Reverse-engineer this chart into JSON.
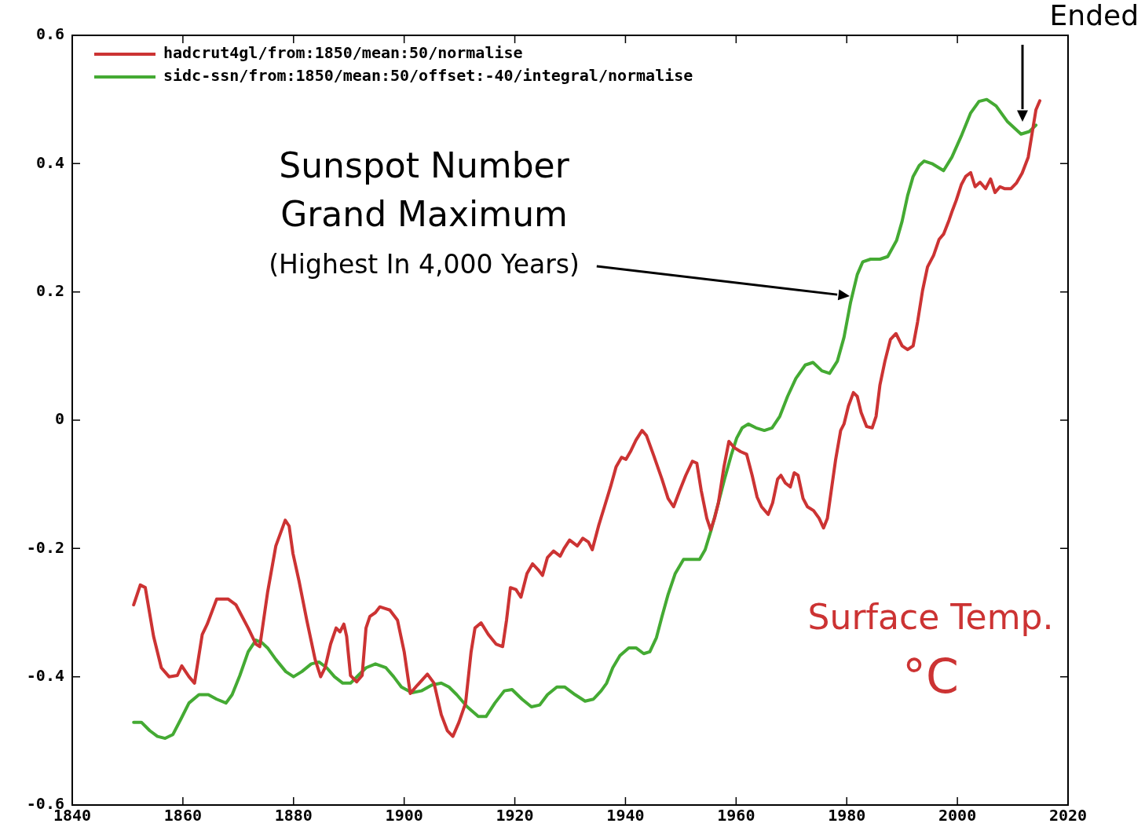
{
  "chart_data": {
    "type": "line",
    "xlim": [
      1840,
      2020
    ],
    "xticks": [
      1840,
      1860,
      1880,
      1900,
      1920,
      1940,
      1960,
      1980,
      2000,
      2020
    ],
    "ylim": [
      -0.6,
      0.6
    ],
    "yticks": [
      -0.6,
      -0.4,
      -0.2,
      0,
      0.2,
      0.4,
      0.6
    ],
    "legend": "top left",
    "grid": false,
    "marker": "none",
    "line_style": "solid",
    "series": [
      {
        "name": "hadcrut4gl/from:1850/mean:50/normalise",
        "color": "#cc3333",
        "x": [
          1851.1,
          1852.3,
          1853.2,
          1854.7,
          1856.1,
          1857.5,
          1859.0,
          1859.8,
          1861.1,
          1862.1,
          1863.5,
          1864.4,
          1866.1,
          1868.2,
          1869.6,
          1871.8,
          1873.2,
          1873.9,
          1875.3,
          1876.8,
          1878.5,
          1879.2,
          1879.9,
          1881.0,
          1882.4,
          1883.9,
          1884.9,
          1885.7,
          1886.7,
          1887.7,
          1888.4,
          1889.1,
          1889.6,
          1890.3,
          1891.4,
          1892.4,
          1893.1,
          1893.8,
          1894.8,
          1895.6,
          1896.7,
          1897.4,
          1898.8,
          1900.0,
          1901.1,
          1902.4,
          1904.2,
          1905.4,
          1906.7,
          1907.8,
          1908.8,
          1909.9,
          1911.1,
          1912.1,
          1912.8,
          1913.9,
          1915.2,
          1916.6,
          1917.8,
          1918.5,
          1919.2,
          1920.2,
          1921.1,
          1922.2,
          1923.2,
          1924.2,
          1925.0,
          1925.9,
          1927.0,
          1928.2,
          1928.9,
          1929.9,
          1931.3,
          1932.3,
          1933.3,
          1934.0,
          1935.2,
          1936.2,
          1937.3,
          1938.3,
          1939.3,
          1940.1,
          1940.9,
          1941.9,
          1943.0,
          1943.8,
          1945.1,
          1946.6,
          1947.7,
          1948.7,
          1949.8,
          1950.9,
          1952.1,
          1952.9,
          1953.7,
          1954.7,
          1955.4,
          1956.1,
          1956.8,
          1957.8,
          1958.7,
          1959.7,
          1960.8,
          1961.9,
          1962.9,
          1963.8,
          1964.6,
          1965.8,
          1966.6,
          1967.5,
          1968.1,
          1968.9,
          1969.8,
          1970.5,
          1971.2,
          1972.1,
          1972.9,
          1974.0,
          1975.0,
          1975.8,
          1976.5,
          1977.2,
          1978.0,
          1978.9,
          1979.5,
          1980.3,
          1981.2,
          1981.9,
          1982.6,
          1983.6,
          1984.6,
          1985.3,
          1986.0,
          1986.9,
          1987.9,
          1988.9,
          1990.0,
          1991.0,
          1992.0,
          1992.8,
          1993.7,
          1994.6,
          1995.7,
          1996.7,
          1997.5,
          1998.5,
          1999.1,
          1999.8,
          2000.7,
          2001.5,
          2002.4,
          2003.2,
          2004.1,
          2005.1,
          2006.0,
          2006.8,
          2007.7,
          2008.5,
          2009.7,
          2010.7,
          2011.7,
          2012.8,
          2013.5,
          2014.2,
          2014.9
        ],
        "values": [
          -0.288,
          -0.257,
          -0.261,
          -0.337,
          -0.386,
          -0.4,
          -0.398,
          -0.383,
          -0.4,
          -0.41,
          -0.334,
          -0.318,
          -0.279,
          -0.279,
          -0.288,
          -0.324,
          -0.349,
          -0.353,
          -0.269,
          -0.196,
          -0.156,
          -0.165,
          -0.208,
          -0.251,
          -0.312,
          -0.373,
          -0.4,
          -0.386,
          -0.349,
          -0.324,
          -0.33,
          -0.318,
          -0.337,
          -0.398,
          -0.408,
          -0.398,
          -0.324,
          -0.306,
          -0.3,
          -0.291,
          -0.294,
          -0.296,
          -0.312,
          -0.361,
          -0.426,
          -0.413,
          -0.396,
          -0.41,
          -0.459,
          -0.484,
          -0.493,
          -0.471,
          -0.441,
          -0.361,
          -0.324,
          -0.316,
          -0.334,
          -0.349,
          -0.353,
          -0.312,
          -0.261,
          -0.264,
          -0.276,
          -0.239,
          -0.224,
          -0.233,
          -0.242,
          -0.214,
          -0.204,
          -0.212,
          -0.2,
          -0.187,
          -0.196,
          -0.184,
          -0.19,
          -0.202,
          -0.163,
          -0.135,
          -0.104,
          -0.073,
          -0.058,
          -0.061,
          -0.049,
          -0.031,
          -0.016,
          -0.024,
          -0.055,
          -0.092,
          -0.122,
          -0.135,
          -0.11,
          -0.086,
          -0.064,
          -0.067,
          -0.11,
          -0.153,
          -0.171,
          -0.153,
          -0.129,
          -0.073,
          -0.033,
          -0.043,
          -0.049,
          -0.053,
          -0.086,
          -0.12,
          -0.135,
          -0.147,
          -0.129,
          -0.092,
          -0.086,
          -0.098,
          -0.104,
          -0.082,
          -0.086,
          -0.122,
          -0.135,
          -0.141,
          -0.153,
          -0.168,
          -0.153,
          -0.11,
          -0.061,
          -0.016,
          -0.006,
          0.022,
          0.043,
          0.037,
          0.012,
          -0.01,
          -0.012,
          0.006,
          0.055,
          0.092,
          0.126,
          0.135,
          0.116,
          0.11,
          0.116,
          0.153,
          0.202,
          0.239,
          0.257,
          0.282,
          0.29,
          0.312,
          0.327,
          0.343,
          0.367,
          0.38,
          0.386,
          0.364,
          0.371,
          0.361,
          0.376,
          0.355,
          0.364,
          0.361,
          0.361,
          0.37,
          0.385,
          0.41,
          0.447,
          0.484,
          0.498
        ]
      },
      {
        "name": "sidc-ssn/from:1850/mean:50/offset:-40/integral/normalise",
        "color": "#44aa33",
        "x": [
          1851.1,
          1852.5,
          1854.0,
          1855.4,
          1856.8,
          1858.2,
          1859.7,
          1861.1,
          1862.9,
          1864.6,
          1866.1,
          1867.8,
          1868.9,
          1870.3,
          1871.8,
          1873.2,
          1874.3,
          1875.3,
          1876.8,
          1878.6,
          1880.0,
          1881.5,
          1883.2,
          1884.6,
          1886.0,
          1887.4,
          1888.9,
          1890.3,
          1891.7,
          1893.1,
          1894.8,
          1896.7,
          1898.1,
          1899.5,
          1901.4,
          1903.1,
          1905.0,
          1906.7,
          1908.1,
          1909.5,
          1911.4,
          1913.4,
          1914.8,
          1916.4,
          1918.1,
          1919.5,
          1921.3,
          1923.0,
          1924.5,
          1925.9,
          1927.6,
          1929.0,
          1930.9,
          1932.7,
          1934.2,
          1935.6,
          1936.6,
          1937.7,
          1939.0,
          1940.6,
          1941.9,
          1943.3,
          1944.4,
          1945.6,
          1946.6,
          1947.7,
          1949.0,
          1950.5,
          1952.0,
          1953.4,
          1954.4,
          1955.5,
          1956.8,
          1957.9,
          1959.1,
          1960.1,
          1961.1,
          1962.2,
          1963.6,
          1965.1,
          1966.5,
          1967.9,
          1969.3,
          1970.8,
          1972.5,
          1973.9,
          1975.5,
          1976.9,
          1978.3,
          1979.5,
          1980.7,
          1981.9,
          1982.9,
          1984.3,
          1986.0,
          1987.4,
          1989.0,
          1990.0,
          1991.0,
          1992.0,
          1993.1,
          1994.0,
          1995.4,
          1997.5,
          1999.0,
          2000.8,
          2002.4,
          2003.9,
          2005.3,
          2007.0,
          2009.0,
          2011.5,
          2013.0,
          2014.2
        ],
        "values": [
          -0.471,
          -0.471,
          -0.484,
          -0.493,
          -0.496,
          -0.49,
          -0.465,
          -0.441,
          -0.428,
          -0.428,
          -0.435,
          -0.441,
          -0.428,
          -0.398,
          -0.361,
          -0.343,
          -0.347,
          -0.355,
          -0.373,
          -0.392,
          -0.4,
          -0.392,
          -0.38,
          -0.377,
          -0.386,
          -0.4,
          -0.41,
          -0.41,
          -0.398,
          -0.386,
          -0.38,
          -0.386,
          -0.4,
          -0.416,
          -0.425,
          -0.422,
          -0.413,
          -0.41,
          -0.416,
          -0.428,
          -0.447,
          -0.462,
          -0.462,
          -0.441,
          -0.422,
          -0.42,
          -0.435,
          -0.447,
          -0.444,
          -0.428,
          -0.416,
          -0.416,
          -0.428,
          -0.438,
          -0.435,
          -0.422,
          -0.41,
          -0.386,
          -0.367,
          -0.355,
          -0.355,
          -0.364,
          -0.361,
          -0.339,
          -0.306,
          -0.272,
          -0.239,
          -0.217,
          -0.217,
          -0.217,
          -0.202,
          -0.171,
          -0.129,
          -0.092,
          -0.055,
          -0.028,
          -0.012,
          -0.006,
          -0.012,
          -0.016,
          -0.012,
          0.006,
          0.037,
          0.065,
          0.086,
          0.09,
          0.077,
          0.073,
          0.092,
          0.129,
          0.184,
          0.227,
          0.247,
          0.251,
          0.251,
          0.255,
          0.28,
          0.31,
          0.35,
          0.38,
          0.397,
          0.404,
          0.4,
          0.389,
          0.41,
          0.445,
          0.479,
          0.497,
          0.5,
          0.49,
          0.466,
          0.446,
          0.45,
          0.46
        ]
      }
    ],
    "annotations": [
      "Sunspot Number\nGrand Maximum\n(Highest In 4,000 Years)",
      "Ended",
      "Surface Temp.\n°C"
    ]
  }
}
